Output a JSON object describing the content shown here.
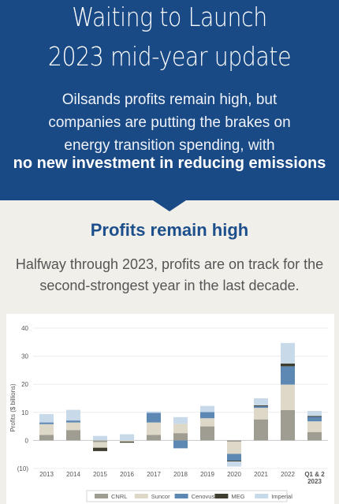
{
  "header": {
    "title_line1": "Waiting to Launch",
    "title_line2": "2023 mid-year update",
    "lead_lines": [
      "Oilsands profits remain high, but",
      "companies are putting the brakes on",
      "energy transition spending, with"
    ],
    "emphasis": "no new investment in reducing emissions"
  },
  "section": {
    "title": "Profits remain high",
    "lead_lines": [
      "Halfway through 2023, profits are on track for the",
      "second-strongest year in the last decade."
    ]
  },
  "chart_data": {
    "type": "bar",
    "stacked": true,
    "title": "",
    "xlabel": "",
    "ylabel": "Profits ($ billions)",
    "ylim": [
      -10,
      40
    ],
    "yticks": [
      40,
      30,
      20,
      10,
      0,
      -10
    ],
    "ytick_labels": [
      "40",
      "30",
      "20",
      "10",
      "0",
      "(10)"
    ],
    "grid": true,
    "legend_position": "bottom",
    "categories": [
      "2013",
      "2014",
      "2015",
      "2016",
      "2017",
      "2018",
      "2019",
      "2020",
      "2021",
      "2022",
      "Q1 & 2 2023"
    ],
    "series": [
      {
        "name": "CNRL",
        "color": "#9f9c91",
        "values": [
          2.0,
          3.7,
          -0.6,
          0.0,
          2.0,
          2.6,
          5.0,
          -0.5,
          7.5,
          10.8,
          3.0
        ]
      },
      {
        "name": "Suncor",
        "color": "#ddd8c8",
        "values": [
          3.8,
          2.7,
          -2.0,
          -0.4,
          4.4,
          3.3,
          2.9,
          -4.3,
          4.1,
          9.1,
          3.8
        ]
      },
      {
        "name": "Cenovus",
        "color": "#5d88b4",
        "values": [
          0.6,
          0.7,
          0.0,
          0.0,
          3.4,
          -2.8,
          2.2,
          -2.4,
          0.6,
          6.5,
          1.6
        ]
      },
      {
        "name": "MEG",
        "color": "#3f3e2f",
        "values": [
          0.0,
          0.0,
          -1.2,
          -0.4,
          0.0,
          0.0,
          0.0,
          -0.3,
          0.3,
          1.0,
          0.3
        ]
      },
      {
        "name": "Imperial",
        "color": "#c8d9e9",
        "values": [
          3.0,
          3.8,
          1.6,
          2.2,
          0.5,
          2.4,
          2.2,
          -1.8,
          2.5,
          7.3,
          1.8
        ]
      }
    ]
  }
}
